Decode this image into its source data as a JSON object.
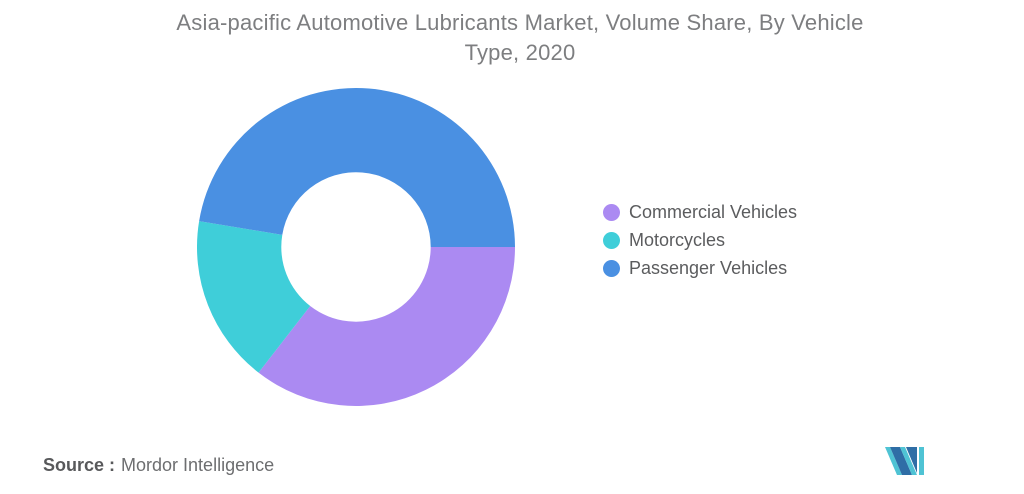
{
  "title": {
    "line1": "Asia-pacific Automotive Lubricants Market, Volume Share, By Vehicle",
    "line2": "Type, 2020"
  },
  "source": {
    "label": "Source :",
    "text": "Mordor Intelligence"
  },
  "logo": {
    "icon": "mordor-intelligence-logo",
    "blue": "#2f6ea6",
    "teal": "#4fc3d4"
  },
  "chart_data": {
    "type": "pie",
    "subtype": "donut",
    "title": "Asia-pacific Automotive Lubricants Market, Volume Share, By Vehicle Type, 2020",
    "categories": [
      "Commercial Vehicles",
      "Motorcycles",
      "Passenger Vehicles"
    ],
    "values": [
      35.5,
      17.1,
      47.4
    ],
    "unit": "%",
    "colors": [
      "#ab8af2",
      "#3fced9",
      "#4a90e2"
    ],
    "start_angle_deg": 90,
    "direction": "clockwise",
    "inner_radius_ratio": 0.47,
    "legend_position": "right",
    "data_labels": false
  }
}
